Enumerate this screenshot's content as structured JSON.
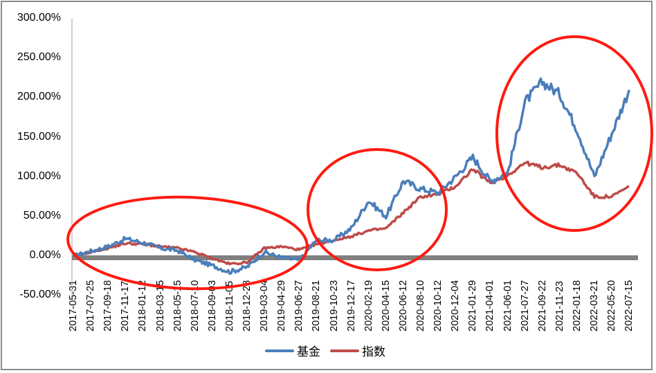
{
  "chart_data": {
    "type": "line",
    "title": "",
    "xlabel": "",
    "ylabel": "",
    "ylim": [
      -0.5,
      3.0
    ],
    "y_ticks": [
      "300.00%",
      "250.00%",
      "200.00%",
      "150.00%",
      "100.00%",
      "50.00%",
      "0.00%",
      "-50.00%"
    ],
    "y_tick_values": [
      3.0,
      2.5,
      2.0,
      1.5,
      1.0,
      0.5,
      0.0,
      -0.5
    ],
    "grid": false,
    "legend_position": "bottom",
    "categories": [
      "2017-05-31",
      "2017-07-25",
      "2017-09-18",
      "2017-11-17",
      "2018-01-12",
      "2018-03-15",
      "2018-05-15",
      "2018-07-10",
      "2018-09-03",
      "2018-11-05",
      "2018-12-28",
      "2019-03-04",
      "2019-04-29",
      "2019-06-27",
      "2019-08-21",
      "2019-10-23",
      "2019-12-17",
      "2020-02-19",
      "2020-04-15",
      "2020-06-12",
      "2020-08-10",
      "2020-10-12",
      "2020-12-04",
      "2021-01-29",
      "2021-04-01",
      "2021-06-01",
      "2021-07-27",
      "2021-09-22",
      "2021-11-23",
      "2022-01-18",
      "2022-03-21",
      "2022-05-20",
      "2022-07-15"
    ],
    "series": [
      {
        "name": "基金",
        "color": "#4a7ebb",
        "values": [
          0.0,
          0.06,
          0.12,
          0.22,
          0.17,
          0.1,
          0.07,
          -0.05,
          -0.12,
          -0.2,
          -0.14,
          0.05,
          -0.02,
          -0.05,
          0.2,
          0.2,
          0.35,
          0.7,
          0.5,
          0.95,
          0.85,
          0.8,
          1.0,
          1.25,
          0.95,
          1.05,
          1.95,
          2.2,
          2.05,
          1.6,
          1.0,
          1.55,
          2.1
        ]
      },
      {
        "name": "指数",
        "color": "#be4b48",
        "values": [
          0.0,
          0.05,
          0.1,
          0.16,
          0.15,
          0.12,
          0.1,
          0.05,
          -0.03,
          -0.1,
          -0.08,
          0.1,
          0.12,
          0.08,
          0.15,
          0.2,
          0.25,
          0.32,
          0.35,
          0.55,
          0.75,
          0.78,
          0.88,
          1.1,
          0.92,
          1.02,
          1.18,
          1.12,
          1.15,
          1.05,
          0.75,
          0.75,
          0.88
        ]
      }
    ],
    "annotations": [
      {
        "type": "ellipse",
        "color": "#ff0000",
        "label": "circle-2017-2019"
      },
      {
        "type": "ellipse",
        "color": "#ff0000",
        "label": "circle-2019-2020"
      },
      {
        "type": "ellipse",
        "color": "#ff0000",
        "label": "circle-2021-2022"
      }
    ]
  },
  "legend": {
    "fund_label": "基金",
    "index_label": "指数"
  }
}
